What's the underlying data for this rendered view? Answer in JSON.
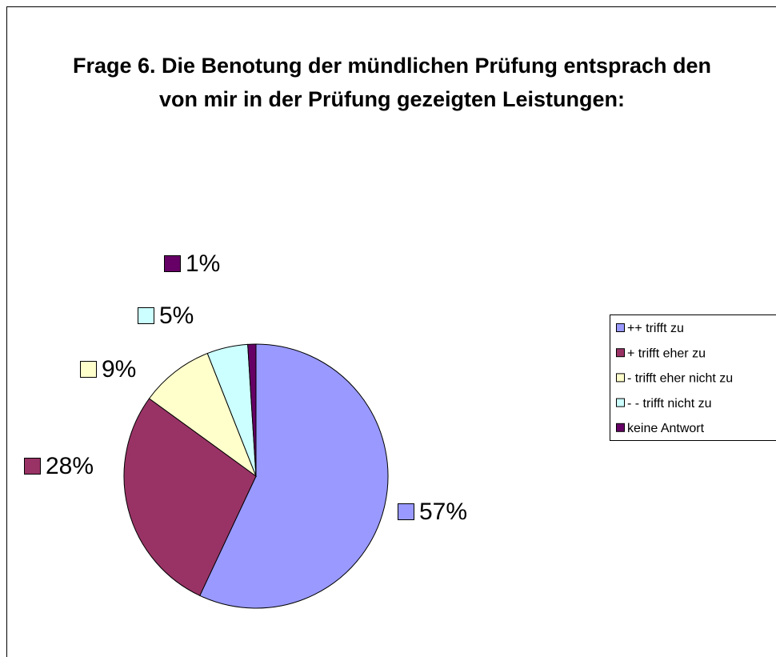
{
  "chart_data": {
    "type": "pie",
    "title": "Frage 6. Die Benotung der mündlichen Prüfung entsprach den von mir in der Prüfung gezeigten Leistungen:",
    "categories": [
      "++ trifft zu",
      "+ trifft eher zu",
      "- trifft eher nicht zu",
      "- - trifft nicht zu",
      "keine Antwort"
    ],
    "values": [
      57,
      28,
      9,
      5,
      1
    ],
    "value_labels": [
      "57%",
      "28%",
      "9%",
      "5%",
      "1%"
    ],
    "colors": [
      "#9999ff",
      "#993366",
      "#ffffcc",
      "#ccffff",
      "#660066"
    ],
    "legend": "right"
  }
}
